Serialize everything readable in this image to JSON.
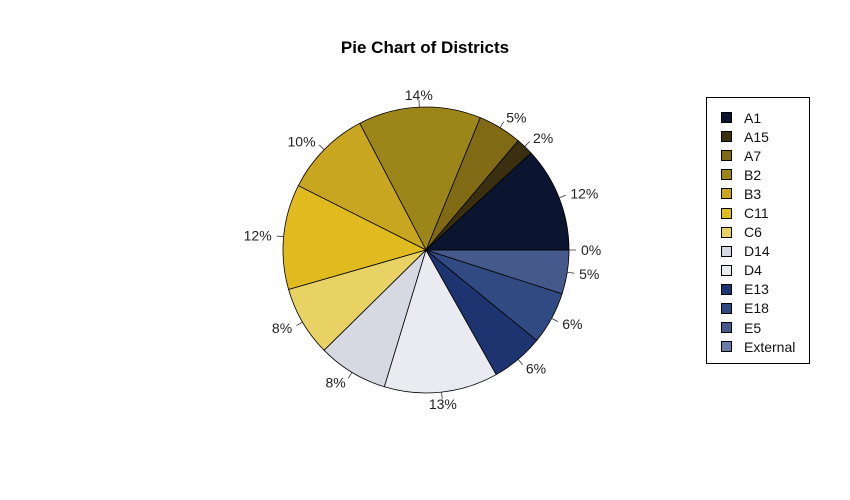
{
  "chart_data": {
    "type": "pie",
    "title": "Pie Chart of Districts",
    "start_angle_deg": 0,
    "direction": "counterclockwise",
    "legend_position": "right",
    "slices": [
      {
        "name": "A1",
        "value": 12,
        "label": "12%",
        "color": "#0c1530"
      },
      {
        "name": "A15",
        "value": 2,
        "label": "2%",
        "color": "#3a3010"
      },
      {
        "name": "A7",
        "value": 5,
        "label": "5%",
        "color": "#806b14"
      },
      {
        "name": "B2",
        "value": 14,
        "label": "14%",
        "color": "#9c8519"
      },
      {
        "name": "B3",
        "value": 10,
        "label": "10%",
        "color": "#c9a61f"
      },
      {
        "name": "C11",
        "value": 12,
        "label": "12%",
        "color": "#e0bb20"
      },
      {
        "name": "C6",
        "value": 8,
        "label": "8%",
        "color": "#e8d264"
      },
      {
        "name": "D14",
        "value": 8,
        "label": "8%",
        "color": "#d6d9e2"
      },
      {
        "name": "D4",
        "value": 13,
        "label": "13%",
        "color": "#e9ebf0"
      },
      {
        "name": "E13",
        "value": 6,
        "label": "6%",
        "color": "#1e3470"
      },
      {
        "name": "E18",
        "value": 6,
        "label": "6%",
        "color": "#314a82"
      },
      {
        "name": "E5",
        "value": 5,
        "label": "5%",
        "color": "#45598a"
      },
      {
        "name": "External",
        "value": 0.001,
        "label": "0%",
        "color": "#6a7ca8"
      }
    ]
  }
}
